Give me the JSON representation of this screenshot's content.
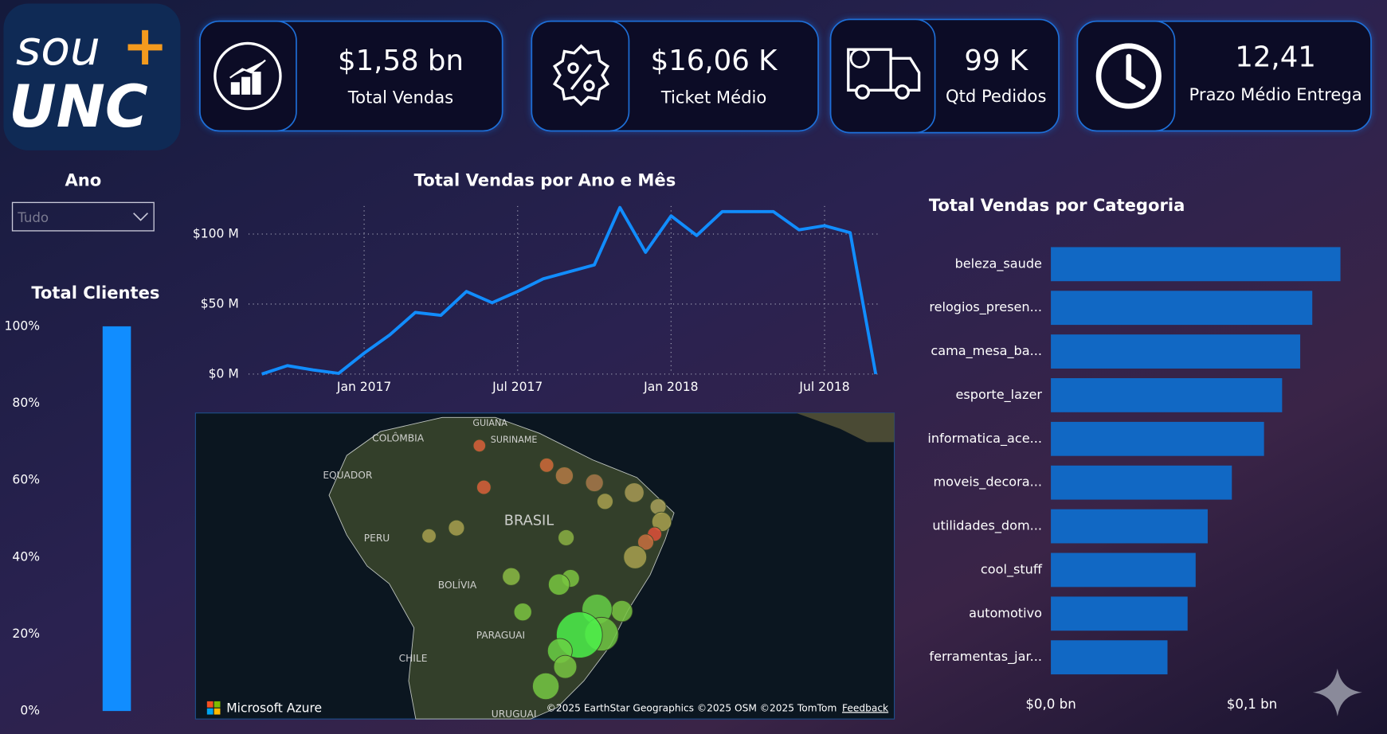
{
  "logo": {
    "word": "sou",
    "plus": "+",
    "brand": "UNC"
  },
  "kpis": [
    {
      "value": "$1,58 bn",
      "label": "Total Vendas"
    },
    {
      "value": "$16,06 K",
      "label": "Ticket Médio"
    },
    {
      "value": "99 K",
      "label": "Qtd Pedidos"
    },
    {
      "value": "12,41",
      "label": "Prazo Médio Entrega"
    }
  ],
  "filter": {
    "label": "Ano",
    "selected": "Tudo"
  },
  "map": {
    "labels": [
      "COLÔMBIA",
      "GUIANA",
      "SURINAME",
      "EQUADOR",
      "BRASIL",
      "PERU",
      "BOLÍVIA",
      "PARAGUAI",
      "CHILE",
      "URUGUAI"
    ],
    "attribution": "Microsoft Azure",
    "copyright": "©2025 EarthStar Geographics  ©2025 OSM  ©2025 TomTom",
    "feedback": "Feedback"
  },
  "chart_data": [
    {
      "type": "bar",
      "title": "Total Clientes",
      "values": [
        100
      ],
      "color": "#118dff",
      "ylim": [
        0,
        100
      ],
      "yticks": [
        {
          "value": 0,
          "label": "0%"
        },
        {
          "value": 20,
          "label": "20%"
        },
        {
          "value": 40,
          "label": "40%"
        },
        {
          "value": 60,
          "label": "60%"
        },
        {
          "value": 80,
          "label": "80%"
        },
        {
          "value": 100,
          "label": "100%"
        }
      ]
    },
    {
      "type": "line",
      "title": "Total Vendas por Ano e Mês",
      "color": "#118dff",
      "categories": [
        null,
        null,
        null,
        null,
        "Jan 2017",
        null,
        null,
        null,
        null,
        null,
        "Jul 2017",
        null,
        null,
        null,
        null,
        null,
        "Jan 2018",
        null,
        null,
        null,
        null,
        null,
        "Jul 2018",
        null,
        null
      ],
      "values": [
        0,
        6,
        3,
        0.5,
        15,
        28,
        44,
        42,
        59,
        51,
        59,
        68,
        73,
        78,
        119,
        87,
        113,
        99,
        116,
        116,
        116,
        103,
        106,
        101,
        0
      ],
      "ylim": [
        0,
        120
      ],
      "yticks": [
        {
          "value": 0,
          "label": "$0 M"
        },
        {
          "value": 50,
          "label": "$50 M"
        },
        {
          "value": 100,
          "label": "$100 M"
        }
      ],
      "grid": true
    },
    {
      "type": "bar",
      "horizontal": true,
      "title": "Total Vendas por Categoria",
      "color": "#1168c4",
      "categories": [
        "beleza_saude",
        "relogios_presen...",
        "cama_mesa_ba...",
        "esporte_lazer",
        "informatica_ace...",
        "moveis_decora...",
        "utilidades_dom...",
        "cool_stuff",
        "automotivo",
        "ferramentas_jar..."
      ],
      "values": [
        0.144,
        0.13,
        0.124,
        0.115,
        0.106,
        0.09,
        0.078,
        0.072,
        0.068,
        0.058
      ],
      "xlim": [
        0,
        0.15
      ],
      "xticks": [
        {
          "value": 0,
          "label": "$0,0 bn"
        },
        {
          "value": 0.1,
          "label": "$0,1 bn"
        }
      ]
    }
  ]
}
